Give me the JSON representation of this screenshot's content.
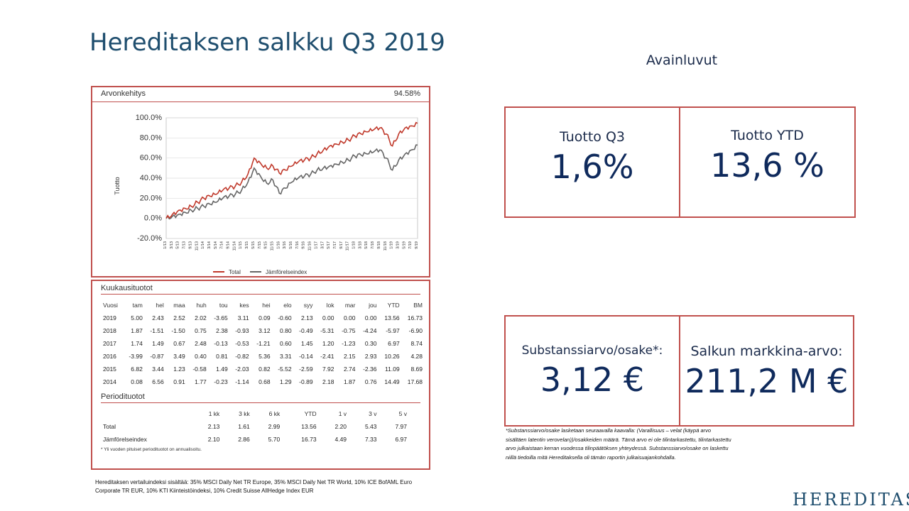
{
  "title": "Hereditaksen salkku Q3 2019",
  "kpi_heading": "Avainluvut",
  "kpis": {
    "q3": {
      "label": "Tuotto Q3",
      "value": "1,6%"
    },
    "ytd": {
      "label": "Tuotto YTD",
      "value": "13,6 %"
    },
    "nav": {
      "label": "Substanssiarvo/osake*:",
      "value": "3,12 €"
    },
    "mv": {
      "label": "Salkun markkina-arvo:",
      "value": "211,2 M €"
    }
  },
  "perf_chart": {
    "header": "Arvonkehitys",
    "header_value": "94.58%",
    "ylabel": "Tuotto",
    "legend_total": "Total",
    "legend_bench": "Jämförelseindex"
  },
  "chart_data": {
    "type": "line",
    "title": "Arvonkehitys",
    "ylabel": "Tuotto",
    "ylim": [
      -20,
      100
    ],
    "yticks": [
      "100.0%",
      "80.0%",
      "60.0%",
      "40.0%",
      "20.0%",
      "0.0%",
      "-20.0%"
    ],
    "ytick_values": [
      100,
      80,
      60,
      40,
      20,
      0,
      -20
    ],
    "categories": [
      "1/13",
      "3/13",
      "5/13",
      "7/13",
      "9/13",
      "11/13",
      "1/14",
      "3/14",
      "5/14",
      "7/14",
      "9/14",
      "11/14",
      "1/15",
      "3/15",
      "5/15",
      "7/15",
      "9/15",
      "11/15",
      "1/16",
      "3/16",
      "5/16",
      "7/16",
      "9/16",
      "11/16",
      "1/17",
      "3/17",
      "5/17",
      "7/17",
      "9/17",
      "11/17",
      "1/18",
      "3/18",
      "5/18",
      "7/18",
      "9/18",
      "11/18",
      "1/19",
      "3/19",
      "5/19",
      "7/19",
      "9/19"
    ],
    "series": [
      {
        "name": "Total",
        "color": "#c0392b",
        "values": [
          0,
          4,
          8,
          10,
          12,
          16,
          20,
          22,
          24,
          28,
          30,
          32,
          36,
          44,
          60,
          55,
          50,
          52,
          45,
          48,
          52,
          56,
          58,
          60,
          64,
          68,
          72,
          74,
          76,
          78,
          82,
          84,
          86,
          88,
          90,
          84,
          72,
          84,
          90,
          92,
          94.58
        ]
      },
      {
        "name": "Jämförelseindex",
        "color": "#666666",
        "values": [
          0,
          2,
          4,
          6,
          8,
          10,
          12,
          14,
          16,
          20,
          22,
          24,
          28,
          36,
          50,
          42,
          35,
          38,
          25,
          30,
          36,
          40,
          42,
          44,
          48,
          50,
          52,
          54,
          56,
          58,
          62,
          63,
          64,
          66,
          68,
          60,
          48,
          58,
          64,
          68,
          73
        ]
      }
    ]
  },
  "monthly": {
    "header": "Kuukausituotot",
    "columns": [
      "Vuosi",
      "tam",
      "hel",
      "maa",
      "huh",
      "tou",
      "kes",
      "hei",
      "elo",
      "syy",
      "lok",
      "mar",
      "jou",
      "YTD",
      "BM"
    ],
    "rows": [
      [
        "2019",
        "5.00",
        "2.43",
        "2.52",
        "2.02",
        "-3.65",
        "3.11",
        "0.09",
        "-0.60",
        "2.13",
        "0.00",
        "0.00",
        "0.00",
        "13.56",
        "16.73"
      ],
      [
        "2018",
        "1.87",
        "-1.51",
        "-1.50",
        "0.75",
        "2.38",
        "-0.93",
        "3.12",
        "0.80",
        "-0.49",
        "-5.31",
        "-0.75",
        "-4.24",
        "-5.97",
        "-6.90"
      ],
      [
        "2017",
        "1.74",
        "1.49",
        "0.67",
        "2.48",
        "-0.13",
        "-0.53",
        "-1.21",
        "0.60",
        "1.45",
        "1.20",
        "-1.23",
        "0.30",
        "6.97",
        "8.74"
      ],
      [
        "2016",
        "-3.99",
        "-0.87",
        "3.49",
        "0.40",
        "0.81",
        "-0.82",
        "5.36",
        "3.31",
        "-0.14",
        "-2.41",
        "2.15",
        "2.93",
        "10.26",
        "4.28"
      ],
      [
        "2015",
        "6.82",
        "3.44",
        "1.23",
        "-0.58",
        "1.49",
        "-2.03",
        "0.82",
        "-5.52",
        "-2.59",
        "7.92",
        "2.74",
        "-2.36",
        "11.09",
        "8.69"
      ],
      [
        "2014",
        "0.08",
        "6.56",
        "0.91",
        "1.77",
        "-0.23",
        "-1.14",
        "0.68",
        "1.29",
        "-0.89",
        "2.18",
        "1.87",
        "0.76",
        "14.49",
        "17.68"
      ]
    ]
  },
  "periodic": {
    "header": "Periodituotot",
    "columns": [
      "",
      "1 kk",
      "3 kk",
      "6 kk",
      "YTD",
      "1 v",
      "3 v",
      "5 v"
    ],
    "rows": [
      [
        "Total",
        "2.13",
        "1.61",
        "2.99",
        "13.56",
        "2.20",
        "5.43",
        "7.97"
      ],
      [
        "Jämförelseindex",
        "2.10",
        "2.86",
        "5.70",
        "16.73",
        "4.49",
        "7.33",
        "6.97"
      ]
    ],
    "note": "* Yli vuoden pituiset periodituotot on annualisoitu."
  },
  "benchmark_note": "Hereditaksen vertailuindeksi sisältää: 35% MSCI Daily Net TR Europe, 35% MSCI Daily Net TR World, 10% ICE BofAML Euro Corporate TR EUR, 10% KTI Kiinteistöindeksi, 10% Credit Suisse AllHedge Index EUR",
  "nav_note": "*Substanssiarvo/osake lasketaan seuraavalla kaavalla: (Varallisuus – velat (käypä arvo sisältäen latentin verovelan))/osakkeiden määrä. Tämä arvo ei ole tilintarkastettu, tilintarkastettu arvo julkaistaan kerran vuodessa tilinpäätöksen yhteydessä. Substanssiarvo/osake on laskettu niillä tiedoilla mitä Hereditaksella oli tämän raportin julkaisuajankohdalla.",
  "logo": "HEREDITAS"
}
